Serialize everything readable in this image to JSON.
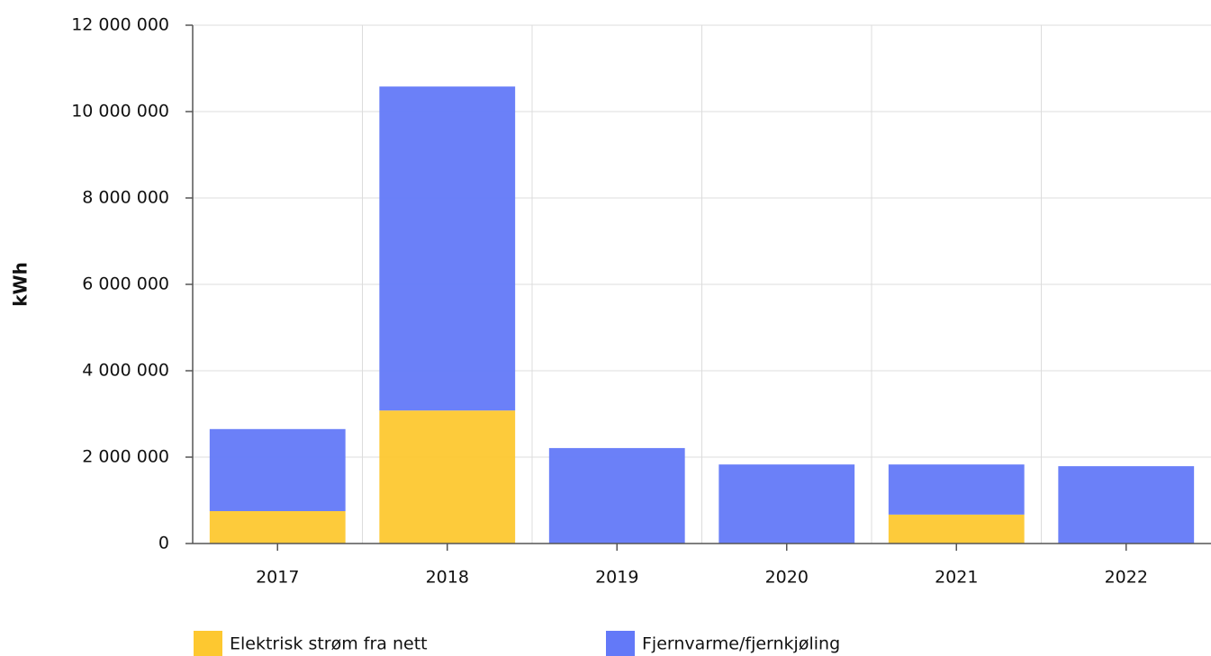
{
  "chart_data": {
    "type": "stacked_bar",
    "y_label": "kWh",
    "categories": [
      "2017",
      "2018",
      "2019",
      "2020",
      "2021",
      "2022"
    ],
    "series": [
      {
        "name": "Elektrisk strøm fra nett",
        "color": "#fdc830",
        "values": [
          750000,
          3080000,
          0,
          0,
          670000,
          0
        ]
      },
      {
        "name": "Fjernvarme/fjernkjøling",
        "color": "#6379f8",
        "values": [
          1900000,
          7500000,
          2210000,
          1830000,
          1160000,
          1790000
        ]
      }
    ],
    "ylim": [
      0,
      12000000
    ],
    "yticks": [
      0,
      {
        "value": 2000000,
        "label": "2 000 000"
      },
      {
        "value": 4000000,
        "label": "4 000 000"
      },
      {
        "value": 6000000,
        "label": "6 000 000"
      },
      {
        "value": 8000000,
        "label": "8 000 000"
      },
      {
        "value": 10000000,
        "label": "10 000 000"
      },
      {
        "value": 12000000,
        "label": "12 000 000"
      }
    ],
    "grid": true,
    "legend": "bottom"
  }
}
